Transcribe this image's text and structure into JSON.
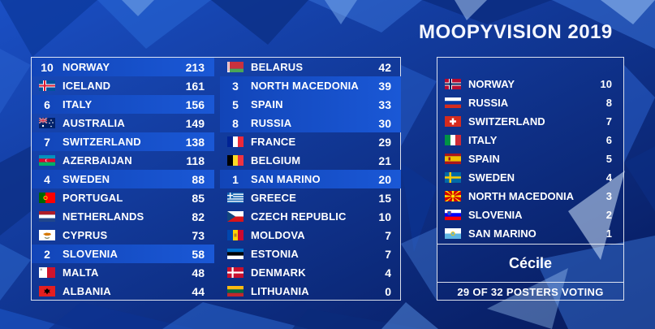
{
  "title": "MOOPYVISION 2019",
  "scoreboard": {
    "left": [
      {
        "given": "10",
        "flag": "norway",
        "name": "NORWAY",
        "score": "213",
        "highlight": true
      },
      {
        "given": "",
        "flag": "iceland",
        "name": "ICELAND",
        "score": "161",
        "highlight": false
      },
      {
        "given": "6",
        "flag": "italy",
        "name": "ITALY",
        "score": "156",
        "highlight": true
      },
      {
        "given": "",
        "flag": "australia",
        "name": "AUSTRALIA",
        "score": "149",
        "highlight": false
      },
      {
        "given": "7",
        "flag": "switzerland",
        "name": "SWITZERLAND",
        "score": "138",
        "highlight": true
      },
      {
        "given": "",
        "flag": "azerbaijan",
        "name": "AZERBAIJAN",
        "score": "118",
        "highlight": false
      },
      {
        "given": "4",
        "flag": "sweden",
        "name": "SWEDEN",
        "score": "88",
        "highlight": true
      },
      {
        "given": "",
        "flag": "portugal",
        "name": "PORTUGAL",
        "score": "85",
        "highlight": false
      },
      {
        "given": "",
        "flag": "netherlands",
        "name": "NETHERLANDS",
        "score": "82",
        "highlight": false
      },
      {
        "given": "",
        "flag": "cyprus",
        "name": "CYPRUS",
        "score": "73",
        "highlight": false
      },
      {
        "given": "2",
        "flag": "slovenia",
        "name": "SLOVENIA",
        "score": "58",
        "highlight": true
      },
      {
        "given": "",
        "flag": "malta",
        "name": "MALTA",
        "score": "48",
        "highlight": false
      },
      {
        "given": "",
        "flag": "albania",
        "name": "ALBANIA",
        "score": "44",
        "highlight": false
      }
    ],
    "right": [
      {
        "given": "",
        "flag": "belarus",
        "name": "BELARUS",
        "score": "42",
        "highlight": false
      },
      {
        "given": "3",
        "flag": "north-macedonia",
        "name": "NORTH MACEDONIA",
        "score": "39",
        "highlight": true
      },
      {
        "given": "5",
        "flag": "spain",
        "name": "SPAIN",
        "score": "33",
        "highlight": true
      },
      {
        "given": "8",
        "flag": "russia",
        "name": "RUSSIA",
        "score": "30",
        "highlight": true
      },
      {
        "given": "",
        "flag": "france",
        "name": "FRANCE",
        "score": "29",
        "highlight": false
      },
      {
        "given": "",
        "flag": "belgium",
        "name": "BELGIUM",
        "score": "21",
        "highlight": false
      },
      {
        "given": "1",
        "flag": "san-marino",
        "name": "SAN MARINO",
        "score": "20",
        "highlight": true
      },
      {
        "given": "",
        "flag": "greece",
        "name": "GREECE",
        "score": "15",
        "highlight": false
      },
      {
        "given": "",
        "flag": "czech-republic",
        "name": "CZECH REPUBLIC",
        "score": "10",
        "highlight": false
      },
      {
        "given": "",
        "flag": "moldova",
        "name": "MOLDOVA",
        "score": "7",
        "highlight": false
      },
      {
        "given": "",
        "flag": "estonia",
        "name": "ESTONIA",
        "score": "7",
        "highlight": false
      },
      {
        "given": "",
        "flag": "denmark",
        "name": "DENMARK",
        "score": "4",
        "highlight": false
      },
      {
        "given": "",
        "flag": "lithuania",
        "name": "LITHUANIA",
        "score": "0",
        "highlight": false
      }
    ]
  },
  "voting": {
    "votes": [
      {
        "flag": "norway",
        "name": "NORWAY",
        "points": "10"
      },
      {
        "flag": "russia",
        "name": "RUSSIA",
        "points": "8"
      },
      {
        "flag": "switzerland",
        "name": "SWITZERLAND",
        "points": "7"
      },
      {
        "flag": "italy",
        "name": "ITALY",
        "points": "6"
      },
      {
        "flag": "spain",
        "name": "SPAIN",
        "points": "5"
      },
      {
        "flag": "sweden",
        "name": "SWEDEN",
        "points": "4"
      },
      {
        "flag": "north-macedonia",
        "name": "NORTH MACEDONIA",
        "points": "3"
      },
      {
        "flag": "slovenia",
        "name": "SLOVENIA",
        "points": "2"
      },
      {
        "flag": "san-marino",
        "name": "SAN MARINO",
        "points": "1"
      }
    ],
    "voter": "Cécile",
    "count_label": "29 OF 32 POSTERS VOTING"
  },
  "colors": {
    "background": "#0a2a7a",
    "highlight": "#1a58d6",
    "text": "#ffffff"
  }
}
